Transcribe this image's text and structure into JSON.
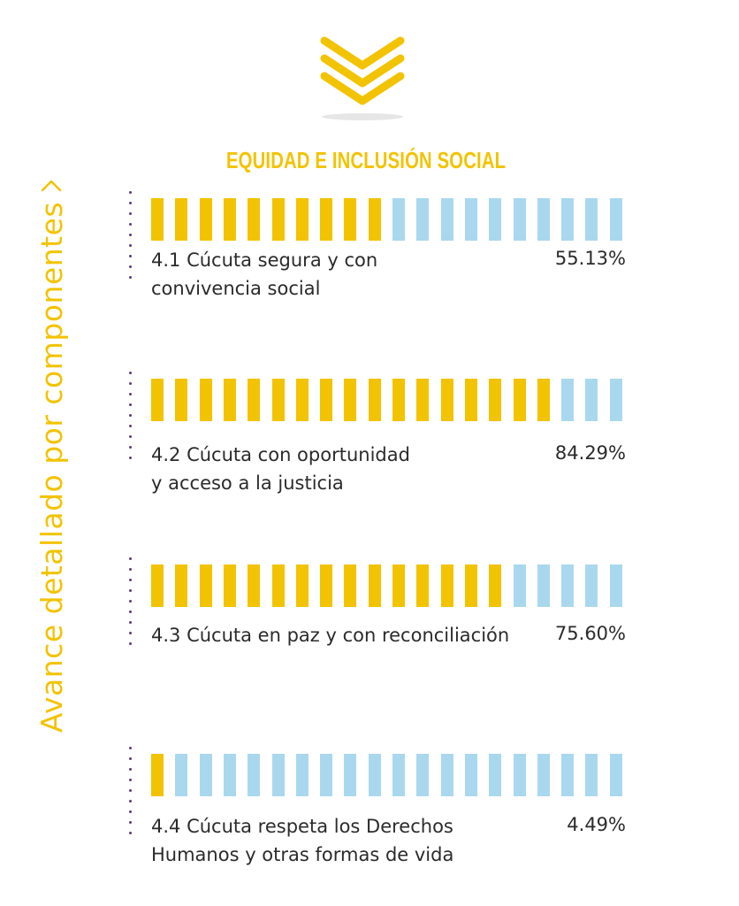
{
  "side_label": "Avance detallado por  componentes",
  "icons": {
    "top": "chevron-down-icon",
    "side": "chevron-right-icon"
  },
  "colors": {
    "accent": "#f2c300",
    "remaining": "#a9d8ee",
    "dots": "#5a3a7e",
    "text": "#2b2b2b"
  },
  "chart_data": {
    "type": "bar",
    "title": "EQUIDAD E INCLUSIÓN SOCIAL",
    "segments_per_bar": 20,
    "categories": [
      [
        "4.1 Cúcuta segura y con",
        " convivencia social"
      ],
      [
        "4.2 Cúcuta con oportunidad",
        "y acceso a la justicia"
      ],
      [
        "4.3 Cúcuta en paz y con reconciliación"
      ],
      [
        "4.4 Cúcuta respeta los Derechos",
        " Humanos y otras formas de vida"
      ]
    ],
    "values": [
      55.13,
      84.29,
      75.6,
      4.49
    ],
    "value_labels": [
      "55.13%",
      "84.29%",
      "75.60%",
      "4.49%"
    ],
    "filled_segments": [
      10,
      17,
      15,
      1
    ],
    "ylim": [
      0,
      100
    ]
  }
}
